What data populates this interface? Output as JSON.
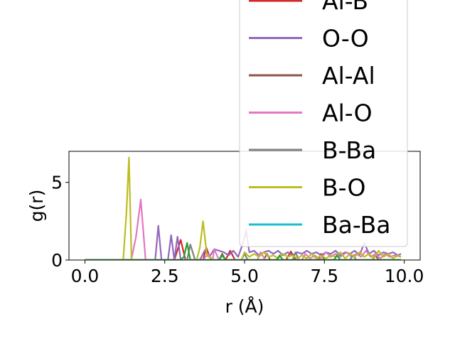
{
  "chart_data": {
    "type": "line",
    "title": "",
    "xlabel": "r (Å)",
    "ylabel": "g(r)",
    "xlim": [
      -0.5,
      10.5
    ],
    "ylim": [
      0,
      7
    ],
    "x_ticks": [
      "0.0",
      "2.5",
      "5.0",
      "7.5",
      "10.0"
    ],
    "y_ticks": [
      "0",
      "5"
    ],
    "legend_position": "upper right",
    "legend_entries_visible": [
      "Al-B",
      "O-O",
      "Al-Al",
      "Al-O",
      "B-Ba",
      "B-O",
      "Ba-Ba"
    ],
    "series": [
      {
        "name": "Al-B",
        "color": "#d62728",
        "points": [
          [
            0,
            0
          ],
          [
            2.5,
            0
          ],
          [
            2.8,
            0
          ],
          [
            3.0,
            1.3
          ],
          [
            3.15,
            0
          ],
          [
            3.7,
            0
          ],
          [
            3.8,
            0.8
          ],
          [
            3.95,
            0
          ],
          [
            4.4,
            0
          ],
          [
            4.55,
            0.6
          ],
          [
            4.7,
            0
          ],
          [
            6.3,
            0
          ],
          [
            6.45,
            0.55
          ],
          [
            6.6,
            0
          ],
          [
            9.9,
            0
          ]
        ]
      },
      {
        "name": "O-O",
        "color": "#9467bd",
        "points": [
          [
            0,
            0
          ],
          [
            2.0,
            0
          ],
          [
            2.2,
            0
          ],
          [
            2.3,
            2.2
          ],
          [
            2.4,
            0
          ],
          [
            2.6,
            0
          ],
          [
            2.7,
            1.6
          ],
          [
            2.8,
            0
          ],
          [
            2.9,
            1.5
          ],
          [
            3.0,
            0
          ],
          [
            3.6,
            0
          ],
          [
            3.75,
            0.6
          ],
          [
            3.9,
            0.2
          ],
          [
            4.05,
            0.7
          ],
          [
            4.2,
            0.6
          ],
          [
            4.35,
            0.5
          ],
          [
            4.5,
            0.3
          ],
          [
            4.65,
            0.6
          ],
          [
            4.8,
            0.2
          ],
          [
            4.95,
            1.1
          ],
          [
            5.05,
            1.9
          ],
          [
            5.15,
            0.5
          ],
          [
            5.3,
            0.6
          ],
          [
            5.45,
            0.3
          ],
          [
            5.6,
            0.5
          ],
          [
            5.75,
            0.6
          ],
          [
            5.9,
            0.4
          ],
          [
            6.05,
            0.6
          ],
          [
            6.2,
            0.3
          ],
          [
            6.35,
            0.5
          ],
          [
            6.5,
            0.3
          ],
          [
            6.65,
            0.5
          ],
          [
            6.8,
            0.4
          ],
          [
            6.95,
            0.6
          ],
          [
            7.1,
            0.4
          ],
          [
            7.25,
            0.5
          ],
          [
            7.4,
            0.3
          ],
          [
            7.55,
            0.5
          ],
          [
            7.7,
            0.4
          ],
          [
            7.85,
            0.6
          ],
          [
            8.0,
            0.3
          ],
          [
            8.15,
            0.5
          ],
          [
            8.3,
            0.4
          ],
          [
            8.45,
            0.6
          ],
          [
            8.6,
            0.3
          ],
          [
            8.75,
            1.1
          ],
          [
            8.9,
            0.4
          ],
          [
            9.05,
            0.6
          ],
          [
            9.2,
            0.3
          ],
          [
            9.35,
            0.5
          ],
          [
            9.5,
            0.4
          ],
          [
            9.65,
            0.5
          ],
          [
            9.8,
            0.3
          ],
          [
            9.9,
            0.4
          ]
        ]
      },
      {
        "name": "Al-Al",
        "color": "#8c564b",
        "points": [
          [
            0,
            0
          ],
          [
            4.0,
            0
          ],
          [
            4.2,
            0
          ],
          [
            4.3,
            0.4
          ],
          [
            4.4,
            0
          ],
          [
            5.6,
            0
          ],
          [
            5.7,
            0.4
          ],
          [
            5.8,
            0
          ],
          [
            7.3,
            0
          ],
          [
            7.4,
            0.4
          ],
          [
            7.5,
            0
          ],
          [
            9.0,
            0
          ],
          [
            9.1,
            0.3
          ],
          [
            9.2,
            0
          ],
          [
            9.9,
            0
          ]
        ]
      },
      {
        "name": "Al-O",
        "color": "#e377c2",
        "points": [
          [
            0,
            0
          ],
          [
            1.45,
            0
          ],
          [
            1.6,
            1.5
          ],
          [
            1.75,
            3.9
          ],
          [
            1.9,
            0
          ],
          [
            3.7,
            0
          ],
          [
            3.85,
            0.4
          ],
          [
            4.0,
            0
          ],
          [
            4.05,
            0.7
          ],
          [
            4.2,
            0
          ],
          [
            5.4,
            0
          ],
          [
            5.5,
            0.5
          ],
          [
            5.65,
            0
          ],
          [
            6.8,
            0
          ],
          [
            6.9,
            0.4
          ],
          [
            7.05,
            0.1
          ],
          [
            7.2,
            0.3
          ],
          [
            7.35,
            0
          ],
          [
            7.55,
            0.5
          ],
          [
            7.7,
            0.2
          ],
          [
            7.85,
            0.4
          ],
          [
            8.0,
            0.2
          ],
          [
            8.2,
            0.5
          ],
          [
            8.35,
            0.2
          ],
          [
            8.5,
            0.4
          ],
          [
            8.65,
            0.2
          ],
          [
            8.8,
            0.6
          ],
          [
            8.95,
            0.2
          ],
          [
            9.1,
            0.4
          ],
          [
            9.25,
            0.1
          ],
          [
            9.4,
            0.4
          ],
          [
            9.55,
            0.2
          ],
          [
            9.7,
            0.3
          ],
          [
            9.9,
            0.2
          ]
        ]
      },
      {
        "name": "B-Ba",
        "color": "#7f7f7f",
        "points": [
          [
            0,
            0
          ],
          [
            3.2,
            0
          ],
          [
            3.3,
            1.0
          ],
          [
            3.45,
            0
          ],
          [
            4.9,
            0
          ],
          [
            5.0,
            0.4
          ],
          [
            5.1,
            0
          ],
          [
            6.5,
            0
          ],
          [
            6.6,
            0.5
          ],
          [
            6.7,
            0
          ],
          [
            8.3,
            0
          ],
          [
            8.4,
            0.3
          ],
          [
            8.5,
            0
          ],
          [
            9.9,
            0
          ]
        ]
      },
      {
        "name": "B-O",
        "color": "#bcbd22",
        "points": [
          [
            0,
            0
          ],
          [
            1.2,
            0
          ],
          [
            1.3,
            3.0
          ],
          [
            1.38,
            6.6
          ],
          [
            1.46,
            0
          ],
          [
            3.5,
            0
          ],
          [
            3.6,
            0.8
          ],
          [
            3.7,
            2.5
          ],
          [
            3.82,
            0.3
          ],
          [
            4.0,
            0
          ],
          [
            4.9,
            0
          ],
          [
            5.0,
            0.5
          ],
          [
            5.15,
            0.2
          ],
          [
            5.3,
            0.4
          ],
          [
            5.45,
            0.2
          ],
          [
            5.6,
            0.5
          ],
          [
            5.75,
            0.2
          ],
          [
            5.9,
            0.3
          ],
          [
            6.05,
            0.1
          ],
          [
            6.2,
            0.4
          ],
          [
            6.35,
            0.2
          ],
          [
            6.5,
            0.3
          ],
          [
            6.65,
            0.1
          ],
          [
            6.8,
            0.3
          ],
          [
            6.95,
            0.1
          ],
          [
            7.1,
            0.4
          ],
          [
            7.25,
            0.1
          ],
          [
            7.4,
            0.3
          ],
          [
            7.55,
            0.1
          ],
          [
            7.7,
            0.3
          ],
          [
            7.85,
            0.2
          ],
          [
            8.0,
            0.5
          ],
          [
            8.15,
            0.1
          ],
          [
            8.3,
            0.4
          ],
          [
            8.45,
            0.2
          ],
          [
            8.6,
            0.5
          ],
          [
            8.75,
            0.2
          ],
          [
            8.9,
            0.4
          ],
          [
            9.05,
            0.1
          ],
          [
            9.2,
            0.6
          ],
          [
            9.35,
            0.2
          ],
          [
            9.5,
            0.4
          ],
          [
            9.65,
            0.1
          ],
          [
            9.8,
            0.3
          ],
          [
            9.9,
            0.2
          ]
        ]
      },
      {
        "name": "Ba-Ba",
        "color": "#17becf",
        "points": [
          [
            0,
            0
          ],
          [
            9.9,
            0
          ]
        ]
      },
      {
        "name": "",
        "color": "#2ca02c",
        "points": [
          [
            0,
            0
          ],
          [
            3.0,
            0
          ],
          [
            3.1,
            0.2
          ],
          [
            3.2,
            1.1
          ],
          [
            3.3,
            0
          ],
          [
            4.2,
            0
          ],
          [
            4.3,
            0.3
          ],
          [
            4.4,
            0
          ],
          [
            6.0,
            0
          ],
          [
            6.1,
            0.3
          ],
          [
            6.2,
            0
          ],
          [
            7.8,
            0
          ],
          [
            7.9,
            0.3
          ],
          [
            8.0,
            0
          ],
          [
            9.9,
            0
          ]
        ]
      }
    ]
  }
}
